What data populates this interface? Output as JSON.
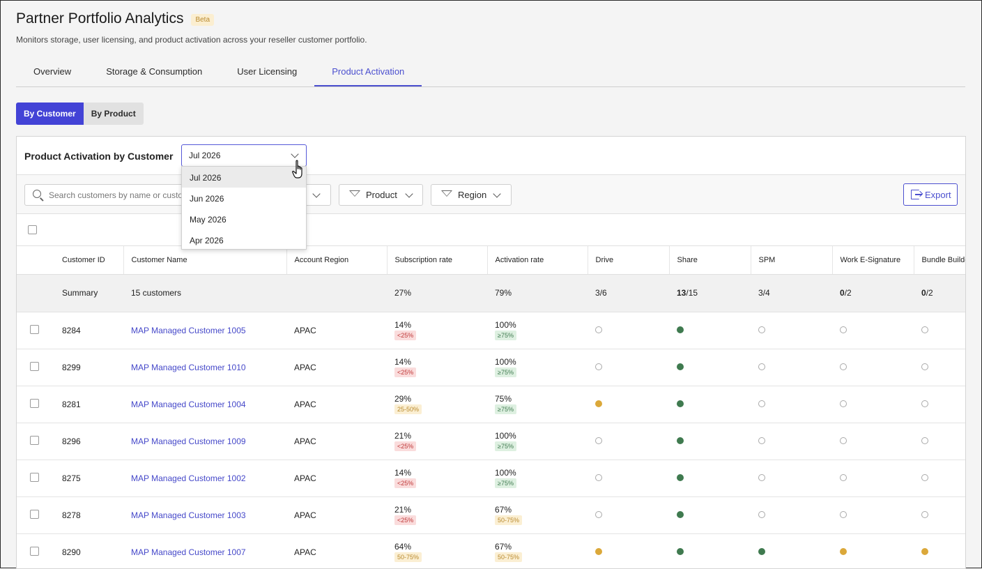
{
  "header": {
    "title": "Partner Portfolio Analytics",
    "badge": "Beta",
    "subtitle": "Monitors storage, user licensing, and product activation across your reseller customer portfolio."
  },
  "tabs": [
    {
      "label": "Overview"
    },
    {
      "label": "Storage & Consumption"
    },
    {
      "label": "User Licensing"
    },
    {
      "label": "Product Activation",
      "active": true
    }
  ],
  "view_toggle": {
    "by_customer": "By Customer",
    "by_product": "By Product"
  },
  "panel": {
    "title": "Product Activation by Customer",
    "month_selected": "Jul 2026",
    "month_options": [
      "Jul 2026",
      "Jun 2026",
      "May 2026",
      "Apr 2026"
    ]
  },
  "toolbar": {
    "search_placeholder": "Search customers by name or customer ID",
    "product_filter": "Product",
    "region_filter": "Region",
    "export": "Export"
  },
  "table": {
    "columns": [
      "Customer ID",
      "Customer Name",
      "Account Region",
      "Subscription rate",
      "Activation rate",
      "Drive",
      "Share",
      "SPM",
      "Work E-Signature",
      "Bundle Builder"
    ],
    "summary": {
      "label": "Summary",
      "customers": "15 customers",
      "subscription_rate": "27%",
      "activation_rate": "79%",
      "drive": {
        "num": "3",
        "den": "/6"
      },
      "share": {
        "num": "13",
        "den": "/15"
      },
      "spm": {
        "num": "3",
        "den": "/4"
      },
      "esign": {
        "num": "0",
        "den": "/2"
      },
      "bundle": {
        "num": "0",
        "den": "/2"
      }
    },
    "rows": [
      {
        "id": "8284",
        "name": "MAP Managed Customer 1005",
        "region": "APAC",
        "sub": "14%",
        "sub_badge": "<25%",
        "act": "100%",
        "act_badge": "≥75%",
        "drive": "empty",
        "share": "green",
        "spm": "empty",
        "esign": "empty",
        "bundle": "empty"
      },
      {
        "id": "8299",
        "name": "MAP Managed Customer 1010",
        "region": "APAC",
        "sub": "14%",
        "sub_badge": "<25%",
        "act": "100%",
        "act_badge": "≥75%",
        "drive": "empty",
        "share": "green",
        "spm": "empty",
        "esign": "empty",
        "bundle": "empty"
      },
      {
        "id": "8281",
        "name": "MAP Managed Customer 1004",
        "region": "APAC",
        "sub": "29%",
        "sub_badge": "25-50%",
        "act": "75%",
        "act_badge": "≥75%",
        "drive": "amber",
        "share": "green",
        "spm": "empty",
        "esign": "empty",
        "bundle": "empty"
      },
      {
        "id": "8296",
        "name": "MAP Managed Customer 1009",
        "region": "APAC",
        "sub": "21%",
        "sub_badge": "<25%",
        "act": "100%",
        "act_badge": "≥75%",
        "drive": "empty",
        "share": "green",
        "spm": "empty",
        "esign": "empty",
        "bundle": "empty"
      },
      {
        "id": "8275",
        "name": "MAP Managed Customer 1002",
        "region": "APAC",
        "sub": "14%",
        "sub_badge": "<25%",
        "act": "100%",
        "act_badge": "≥75%",
        "drive": "empty",
        "share": "green",
        "spm": "empty",
        "esign": "empty",
        "bundle": "empty"
      },
      {
        "id": "8278",
        "name": "MAP Managed Customer 1003",
        "region": "APAC",
        "sub": "21%",
        "sub_badge": "<25%",
        "act": "67%",
        "act_badge": "50-75%",
        "drive": "empty",
        "share": "green",
        "spm": "empty",
        "esign": "empty",
        "bundle": "empty"
      },
      {
        "id": "8290",
        "name": "MAP Managed Customer 1007",
        "region": "APAC",
        "sub": "64%",
        "sub_badge": "50-75%",
        "act": "67%",
        "act_badge": "50-75%",
        "drive": "amber",
        "share": "green",
        "spm": "green",
        "esign": "amber",
        "bundle": "amber"
      }
    ]
  },
  "colors": {
    "accent": "#4343d6",
    "green": "#3f7a4f",
    "amber": "#dba83a"
  }
}
